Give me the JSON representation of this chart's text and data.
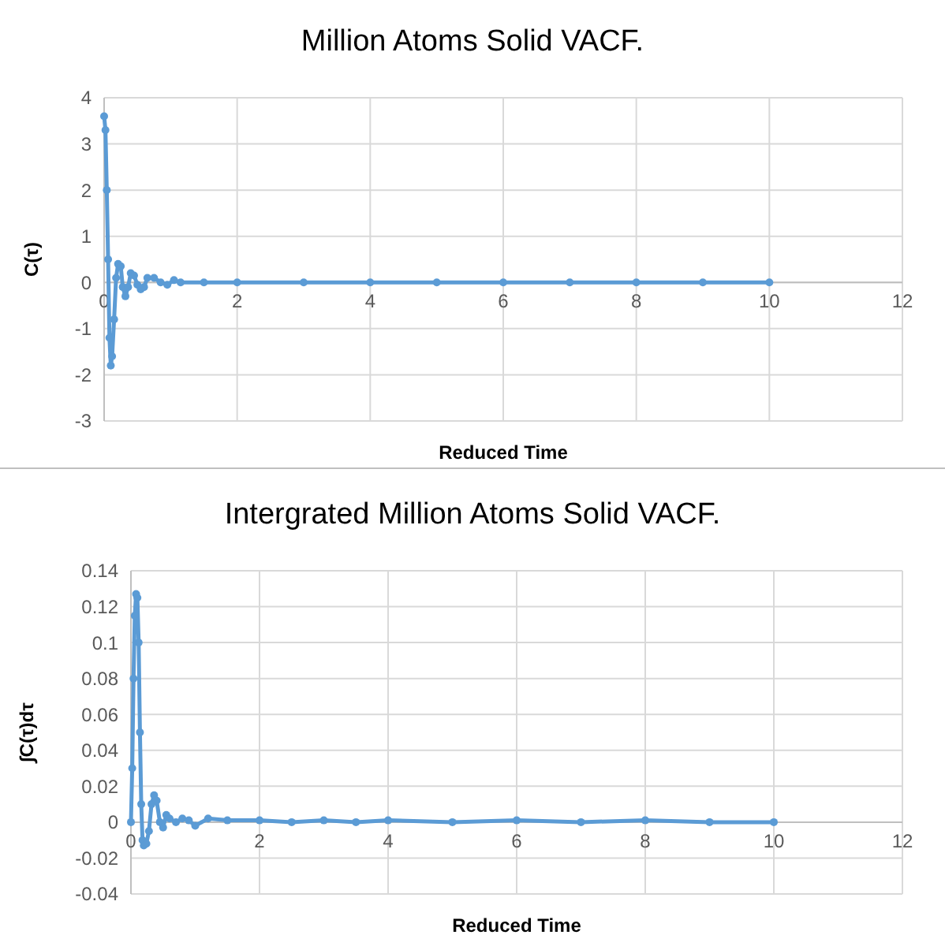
{
  "chart_data": [
    {
      "type": "line",
      "title": "Million Atoms Solid VACF.",
      "xlabel": "Reduced Time",
      "ylabel": "C(τ)",
      "xlim": [
        0,
        12
      ],
      "xticks": [
        0,
        2,
        4,
        6,
        8,
        10,
        12
      ],
      "ylim": [
        -3,
        4
      ],
      "yticks": [
        -3,
        -2,
        -1,
        0,
        1,
        2,
        3,
        4
      ],
      "grid": true,
      "marker": "circle",
      "line_style": "solid",
      "series": [
        {
          "color": "#5b9bd5",
          "x": [
            0,
            0.02,
            0.04,
            0.06,
            0.08,
            0.1,
            0.12,
            0.15,
            0.18,
            0.21,
            0.25,
            0.28,
            0.32,
            0.36,
            0.4,
            0.45,
            0.5,
            0.55,
            0.6,
            0.65,
            0.75,
            0.85,
            0.95,
            1.05,
            1.15,
            1.5,
            2,
            3,
            4,
            5,
            6,
            7,
            8,
            9,
            10
          ],
          "values": [
            3.6,
            3.3,
            2.0,
            0.5,
            -1.2,
            -1.8,
            -1.6,
            -0.8,
            0.1,
            0.4,
            0.35,
            -0.1,
            -0.3,
            -0.1,
            0.2,
            0.15,
            -0.05,
            -0.15,
            -0.1,
            0.1,
            0.1,
            0.0,
            -0.05,
            0.05,
            0.0,
            0.0,
            0.0,
            0.0,
            0.0,
            0.0,
            0.0,
            0.0,
            0.0,
            0.0,
            0.0
          ]
        }
      ]
    },
    {
      "type": "line",
      "title": "Intergrated Million Atoms Solid VACF.",
      "xlabel": "Reduced Time",
      "ylabel": "∫C(τ)dτ",
      "xlim": [
        0,
        12
      ],
      "xticks": [
        0,
        2,
        4,
        6,
        8,
        10,
        12
      ],
      "ylim": [
        -0.04,
        0.14
      ],
      "yticks": [
        -0.04,
        -0.02,
        0,
        0.02,
        0.04,
        0.06,
        0.08,
        0.1,
        0.12,
        0.14
      ],
      "grid": true,
      "marker": "circle",
      "line_style": "solid",
      "series": [
        {
          "color": "#5b9bd5",
          "x": [
            0,
            0.02,
            0.04,
            0.06,
            0.08,
            0.1,
            0.12,
            0.14,
            0.16,
            0.18,
            0.2,
            0.24,
            0.28,
            0.32,
            0.36,
            0.4,
            0.45,
            0.5,
            0.55,
            0.6,
            0.7,
            0.8,
            0.9,
            1.0,
            1.2,
            1.5,
            2,
            2.5,
            3,
            3.5,
            4,
            5,
            6,
            7,
            8,
            9,
            10
          ],
          "values": [
            0,
            0.03,
            0.08,
            0.115,
            0.127,
            0.125,
            0.1,
            0.05,
            0.01,
            -0.01,
            -0.013,
            -0.012,
            -0.005,
            0.01,
            0.015,
            0.012,
            0.0,
            -0.003,
            0.004,
            0.002,
            0.0,
            0.002,
            0.001,
            -0.002,
            0.002,
            0.001,
            0.001,
            0.0,
            0.001,
            0.0,
            0.001,
            0.0,
            0.001,
            0.0,
            0.001,
            0.0,
            0.0
          ]
        }
      ]
    }
  ]
}
